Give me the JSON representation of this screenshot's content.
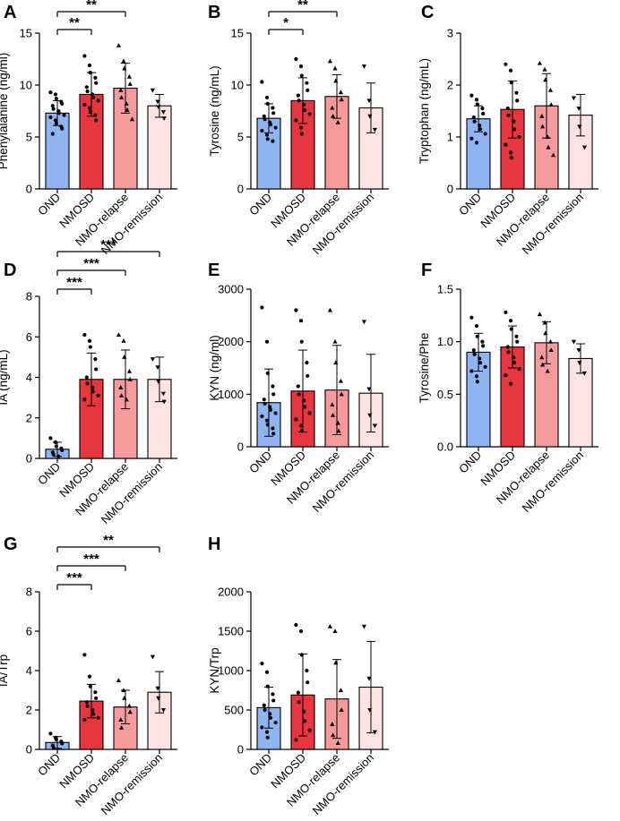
{
  "colors": {
    "OND": "#8fb4f2",
    "NMOSD": "#e8363f",
    "NMO-relapse": "#f59a9d",
    "NMO-remission": "#fde3e2"
  },
  "chart_data": [
    {
      "id": "A",
      "type": "bar",
      "panel_label": "A",
      "ylabel": "Phenylalanine (ng/ml)",
      "ylim": [
        0,
        15
      ],
      "yticks": [
        0,
        5,
        10,
        15
      ],
      "categories": [
        "OND",
        "NMOSD",
        "NMO-relapse",
        "NMO-remission"
      ],
      "values": [
        7.3,
        9.1,
        9.7,
        8.0
      ],
      "errors": [
        1.2,
        2.1,
        2.4,
        1.1
      ],
      "points": [
        [
          9.3,
          9.1,
          8.7,
          8.4,
          8.2,
          8.0,
          7.7,
          7.5,
          7.3,
          7.1,
          6.9,
          6.6,
          6.3,
          6.0,
          5.8,
          5.3
        ],
        [
          12.8,
          11.9,
          11.2,
          10.7,
          10.2,
          9.8,
          9.4,
          9.1,
          8.8,
          8.5,
          8.1,
          7.8,
          7.4,
          7.1,
          6.6
        ],
        [
          13.8,
          12.3,
          11.6,
          10.8,
          10.1,
          9.5,
          8.8,
          8.2,
          7.6,
          6.7
        ],
        [
          9.5,
          8.4,
          7.9,
          7.4,
          6.8
        ]
      ],
      "markers": [
        "circle",
        "circle",
        "triangle",
        "down-triangle"
      ],
      "significance": [
        {
          "from": 0,
          "to": 1,
          "label": "**"
        },
        {
          "from": 0,
          "to": 2,
          "label": "**"
        }
      ]
    },
    {
      "id": "B",
      "type": "bar",
      "panel_label": "B",
      "ylabel": "Tyrosine (ng/mL)",
      "ylim": [
        0,
        15
      ],
      "yticks": [
        0,
        5,
        10,
        15
      ],
      "categories": [
        "OND",
        "NMOSD",
        "NMO-relapse",
        "NMO-remission"
      ],
      "values": [
        6.8,
        8.5,
        8.9,
        7.8
      ],
      "errors": [
        1.4,
        2.2,
        2.1,
        2.4
      ],
      "points": [
        [
          10.3,
          8.8,
          8.2,
          7.8,
          7.3,
          7.0,
          6.7,
          6.4,
          6.2,
          5.9,
          5.6,
          5.2,
          4.8,
          4.6
        ],
        [
          12.5,
          11.8,
          10.9,
          10.2,
          9.5,
          9.0,
          8.5,
          8.1,
          7.6,
          7.2,
          6.6,
          5.9,
          5.3
        ],
        [
          12.3,
          11.6,
          10.4,
          9.3,
          8.6,
          7.8,
          7.0,
          6.4
        ],
        [
          11.8,
          8.5,
          7.0,
          5.7
        ]
      ],
      "markers": [
        "circle",
        "circle",
        "triangle",
        "down-triangle"
      ],
      "significance": [
        {
          "from": 0,
          "to": 1,
          "label": "*"
        },
        {
          "from": 0,
          "to": 2,
          "label": "**"
        }
      ]
    },
    {
      "id": "C",
      "type": "bar",
      "panel_label": "C",
      "ylabel": "Tryptophan (ng/mL)",
      "ylim": [
        0,
        3
      ],
      "yticks": [
        0,
        1,
        2,
        3
      ],
      "categories": [
        "OND",
        "NMOSD",
        "NMO-relapse",
        "NMO-remission"
      ],
      "values": [
        1.35,
        1.53,
        1.6,
        1.42
      ],
      "errors": [
        0.25,
        0.55,
        0.62,
        0.4
      ],
      "points": [
        [
          1.8,
          1.72,
          1.63,
          1.55,
          1.45,
          1.38,
          1.3,
          1.22,
          1.15,
          1.06,
          0.97,
          0.89
        ],
        [
          2.4,
          2.28,
          2.05,
          1.85,
          1.7,
          1.55,
          1.42,
          1.3,
          1.15,
          1.0,
          0.85,
          0.7,
          0.6
        ],
        [
          2.42,
          2.3,
          2.1,
          1.9,
          1.62,
          1.4,
          1.2,
          1.0,
          0.8,
          0.65
        ],
        [
          1.75,
          1.55,
          1.2,
          0.8
        ]
      ],
      "markers": [
        "circle",
        "circle",
        "triangle",
        "down-triangle"
      ],
      "significance": []
    },
    {
      "id": "D",
      "type": "bar",
      "panel_label": "D",
      "ylabel": "IA (ng/mL)",
      "ylim": [
        0,
        8
      ],
      "yticks": [
        0,
        2,
        4,
        6,
        8
      ],
      "categories": [
        "OND",
        "NMOSD",
        "NMO-relapse",
        "NMO-remission"
      ],
      "values": [
        0.45,
        3.9,
        3.9,
        3.9
      ],
      "errors": [
        0.35,
        1.3,
        1.45,
        1.1
      ],
      "points": [
        [
          1.0,
          0.8,
          0.6,
          0.5,
          0.4,
          0.3,
          0.2,
          0.1
        ],
        [
          6.1,
          5.8,
          5.5,
          4.9,
          4.4,
          4.0,
          3.7,
          3.5,
          3.3,
          3.1,
          2.9
        ],
        [
          6.1,
          5.8,
          5.0,
          4.3,
          3.9,
          3.5,
          3.1,
          2.9
        ],
        [
          4.9,
          4.5,
          3.8,
          3.2,
          2.8
        ]
      ],
      "markers": [
        "circle",
        "circle",
        "triangle",
        "down-triangle"
      ],
      "significance": [
        {
          "from": 0,
          "to": 1,
          "label": "***"
        },
        {
          "from": 0,
          "to": 2,
          "label": "***"
        },
        {
          "from": 0,
          "to": 3,
          "label": "***"
        }
      ]
    },
    {
      "id": "E",
      "type": "bar",
      "panel_label": "E",
      "ylabel": "KYN (ng/ml)",
      "ylim": [
        0,
        3000
      ],
      "yticks": [
        0,
        1000,
        2000,
        3000
      ],
      "categories": [
        "OND",
        "NMOSD",
        "NMO-relapse",
        "NMO-remission"
      ],
      "values": [
        840,
        1060,
        1080,
        1020
      ],
      "errors": [
        640,
        780,
        850,
        740
      ],
      "points": [
        [
          2650,
          2000,
          1400,
          1150,
          1000,
          900,
          820,
          760,
          700,
          640,
          580,
          500,
          420,
          350,
          250
        ],
        [
          2600,
          2400,
          2000,
          1600,
          1350,
          1150,
          1000,
          880,
          760,
          640,
          520,
          400,
          300
        ],
        [
          2600,
          2000,
          1600,
          1250,
          1000,
          800,
          600,
          450,
          300
        ],
        [
          2380,
          1100,
          600,
          400
        ]
      ],
      "markers": [
        "circle",
        "circle",
        "triangle",
        "down-triangle"
      ],
      "significance": []
    },
    {
      "id": "F",
      "type": "bar",
      "panel_label": "F",
      "ylabel": "Tyrosine/Phe",
      "ylim": [
        0,
        1.5
      ],
      "yticks": [
        0.0,
        0.5,
        1.0,
        1.5
      ],
      "categories": [
        "OND",
        "NMOSD",
        "NMO-relapse",
        "NMO-remission"
      ],
      "values": [
        0.9,
        0.95,
        0.99,
        0.84
      ],
      "errors": [
        0.18,
        0.2,
        0.2,
        0.14
      ],
      "points": [
        [
          1.23,
          1.15,
          1.05,
          1.0,
          0.96,
          0.92,
          0.88,
          0.84,
          0.8,
          0.76,
          0.72,
          0.67,
          0.62
        ],
        [
          1.28,
          1.2,
          1.12,
          1.05,
          1.0,
          0.95,
          0.9,
          0.85,
          0.8,
          0.74,
          0.68,
          0.6
        ],
        [
          1.26,
          1.18,
          1.08,
          1.0,
          0.92,
          0.85,
          0.78,
          0.72
        ],
        [
          1.0,
          0.92,
          0.8,
          0.7
        ]
      ],
      "markers": [
        "circle",
        "circle",
        "triangle",
        "down-triangle"
      ],
      "significance": []
    },
    {
      "id": "G",
      "type": "bar",
      "panel_label": "G",
      "ylabel": "IA/Trp",
      "ylim": [
        0,
        8
      ],
      "yticks": [
        0,
        2,
        4,
        6,
        8
      ],
      "categories": [
        "OND",
        "NMOSD",
        "NMO-relapse",
        "NMO-remission"
      ],
      "values": [
        0.35,
        2.45,
        2.15,
        2.9
      ],
      "errors": [
        0.3,
        0.85,
        0.85,
        1.05
      ],
      "points": [
        [
          0.8,
          0.6,
          0.5,
          0.4,
          0.3,
          0.2,
          0.1
        ],
        [
          4.8,
          3.7,
          3.2,
          2.9,
          2.6,
          2.4,
          2.2,
          2.0,
          1.8,
          1.6,
          1.5
        ],
        [
          3.5,
          3.0,
          2.6,
          2.2,
          1.9,
          1.5,
          1.1
        ],
        [
          4.7,
          3.1,
          2.6,
          2.0
        ]
      ],
      "markers": [
        "circle",
        "circle",
        "triangle",
        "down-triangle"
      ],
      "significance": [
        {
          "from": 0,
          "to": 1,
          "label": "***"
        },
        {
          "from": 0,
          "to": 2,
          "label": "***"
        },
        {
          "from": 0,
          "to": 3,
          "label": "**"
        }
      ]
    },
    {
      "id": "H",
      "type": "bar",
      "panel_label": "H",
      "ylabel": "KYN/Trp",
      "ylim": [
        0,
        2000
      ],
      "yticks": [
        0,
        500,
        1000,
        1500,
        2000
      ],
      "categories": [
        "OND",
        "NMOSD",
        "NMO-relapse",
        "NMO-remission"
      ],
      "values": [
        530,
        690,
        640,
        790
      ],
      "errors": [
        260,
        520,
        500,
        580
      ],
      "points": [
        [
          1090,
          980,
          800,
          700,
          620,
          560,
          500,
          450,
          400,
          340,
          280,
          220,
          150
        ],
        [
          1580,
          1500,
          1200,
          1000,
          850,
          720,
          600,
          480,
          360,
          240,
          120
        ],
        [
          1560,
          1500,
          1100,
          750,
          500,
          320,
          180,
          80
        ],
        [
          1560,
          900,
          500,
          220
        ]
      ],
      "markers": [
        "circle",
        "circle",
        "triangle",
        "down-triangle"
      ],
      "significance": []
    }
  ]
}
